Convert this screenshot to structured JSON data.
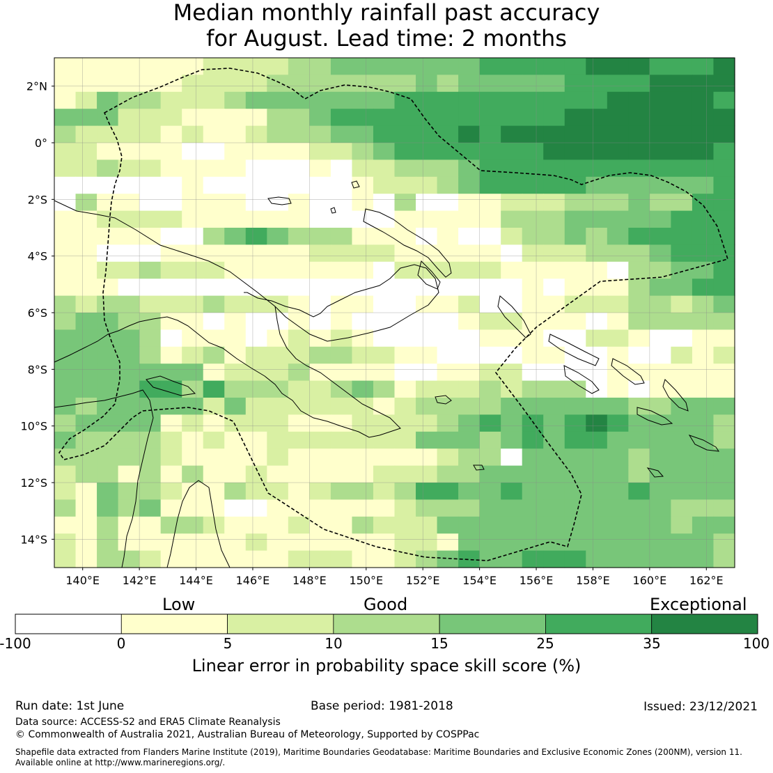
{
  "title": {
    "line1": "Median monthly rainfall past accuracy",
    "line2": "for August. Lead time: 2 months"
  },
  "map": {
    "extent": {
      "lon_min": 139,
      "lon_max": 163,
      "lat_min": -15,
      "lat_max": 3
    },
    "lon_ticks": [
      {
        "lon": 140,
        "label": "140°E"
      },
      {
        "lon": 142,
        "label": "142°E"
      },
      {
        "lon": 144,
        "label": "144°E"
      },
      {
        "lon": 146,
        "label": "146°E"
      },
      {
        "lon": 148,
        "label": "148°E"
      },
      {
        "lon": 150,
        "label": "150°E"
      },
      {
        "lon": 152,
        "label": "152°E"
      },
      {
        "lon": 154,
        "label": "154°E"
      },
      {
        "lon": 156,
        "label": "156°E"
      },
      {
        "lon": 158,
        "label": "158°E"
      },
      {
        "lon": 160,
        "label": "160°E"
      },
      {
        "lon": 162,
        "label": "162°E"
      }
    ],
    "lat_ticks": [
      {
        "lat": 2,
        "label": "2°N"
      },
      {
        "lat": 0,
        "label": "0°"
      },
      {
        "lat": -2,
        "label": "2°S"
      },
      {
        "lat": -4,
        "label": "4°S"
      },
      {
        "lat": -6,
        "label": "6°S"
      },
      {
        "lat": -8,
        "label": "8°S"
      },
      {
        "lat": -10,
        "label": "10°S"
      },
      {
        "lat": -12,
        "label": "12°S"
      },
      {
        "lat": -14,
        "label": "14°S"
      }
    ],
    "grid": true,
    "cell_size_deg": 0.8,
    "category_colors": [
      "#ffffff",
      "#ffffcc",
      "#d9f0a3",
      "#addd8e",
      "#78c679",
      "#41ab5d",
      "#238443"
    ],
    "skill_grid": [
      "11111112222334444444555556665556",
      "11111122223333333434444455556666",
      "12433222344444445555555555666665",
      "44422211113345555555555566666666",
      "32222121123334455556566666666666",
      "22111100111122345555555666666665",
      "22322111100010223334555555555555",
      "00000010000000122234555554444445",
      "03110011100100103001122233343355",
      "11222211111100001111133344444555",
      "11111003454333111010023343455555",
      "11000111111122221111102223334555",
      "11223222111111102222211111033445",
      "11100000000000000000001011134455",
      "32332223222101100112001122233234",
      "34433110100101000001221110133333",
      "44443011101212100000111002210011",
      "44443123122233221100001100100212",
      "44444441222311110011220000111111",
      "44445535333223431222323330101111",
      "43444442422222212333344444433444",
      "34444121222111222234545456544443",
      "43333212112222222444345455444443",
      "33333211112111111123304444434444",
      "23313131121111122233444444434444",
      "21433211322123323554454444454444",
      "31434111001111112333444444444333",
      "11311332111211322244444444444344",
      "21311111121111112214444444444443",
      "21332111111222112345445554444443"
    ]
  },
  "colorbar": {
    "categories": [
      "Low",
      "Good",
      "Exceptional"
    ],
    "ticks": [
      "-100",
      "0",
      "5",
      "10",
      "15",
      "25",
      "35",
      "100"
    ],
    "colors": [
      "#ffffff",
      "#ffffcc",
      "#d9f0a3",
      "#addd8e",
      "#78c679",
      "#41ab5d",
      "#238443"
    ],
    "label": "Linear error in probability space skill score (%)"
  },
  "footer": {
    "run_date": "Run date: 1st June",
    "base_period": "Base period: 1981-2018",
    "issued": "Issued: 23/12/2021",
    "data_source": "Data source: ACCESS-S2 and ERA5 Climate Reanalysis",
    "copyright": "© Commonwealth of Australia 2021, Australian Bureau of Meteorology, Supported by COSPPac",
    "shapefile_line1": "Shapefile data extracted from Flanders Marine Institute (2019), Maritime Boundaries Geodatabase: Maritime Boundaries and Exclusive Economic Zones (200NM), version 11.",
    "shapefile_line2": "Available online at http://www.marineregions.org/."
  }
}
